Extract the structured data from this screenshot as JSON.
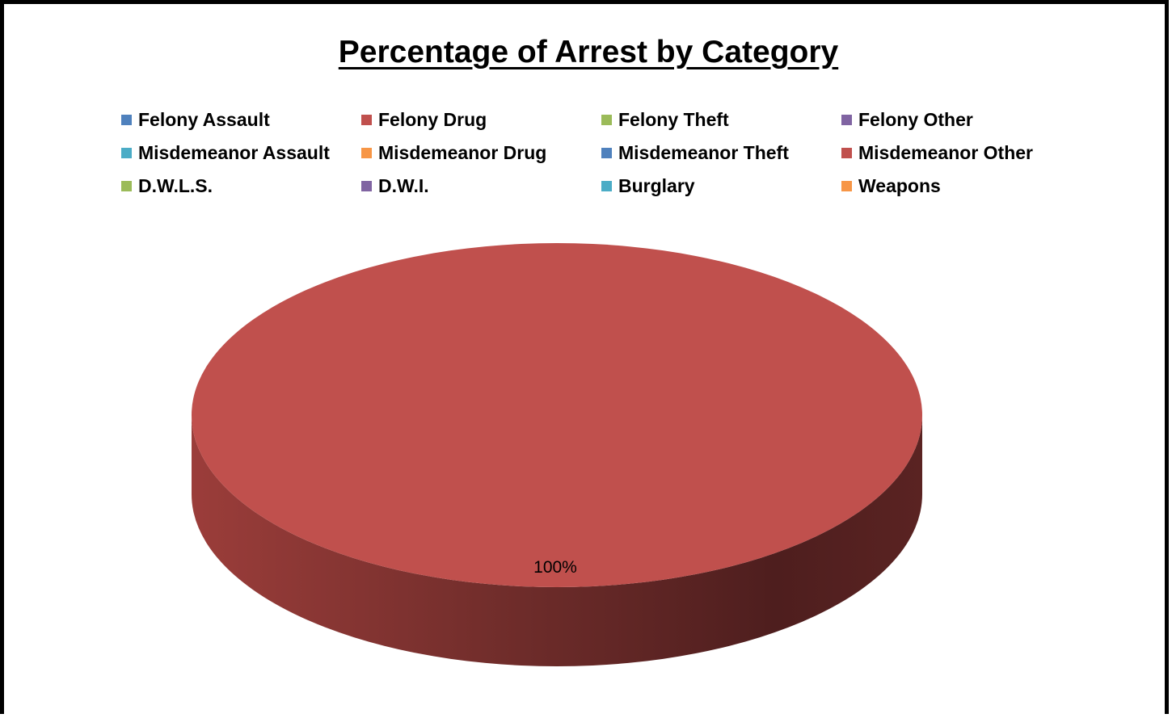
{
  "chart_data": {
    "type": "pie",
    "title": "Percentage of Arrest by Category",
    "legend_position": "top",
    "categories": [
      "Felony Assault",
      "Felony Drug",
      "Felony Theft",
      "Felony Other",
      "Misdemeanor Assault",
      "Misdemeanor Drug",
      "Misdemeanor Theft",
      "Misdemeanor Other",
      "D.W.L.S.",
      "D.W.I.",
      "Burglary",
      "Weapons"
    ],
    "values": [
      0,
      0,
      0,
      0,
      0,
      0,
      0,
      100,
      0,
      0,
      0,
      0
    ],
    "value_unit": "%",
    "colors": [
      "#4F81BD",
      "#C0504D",
      "#9BBB59",
      "#8064A2",
      "#4BACC6",
      "#F79646",
      "#4F81BD",
      "#C0504D",
      "#9BBB59",
      "#8064A2",
      "#4BACC6",
      "#F79646"
    ],
    "data_labels": [
      "100%"
    ]
  }
}
